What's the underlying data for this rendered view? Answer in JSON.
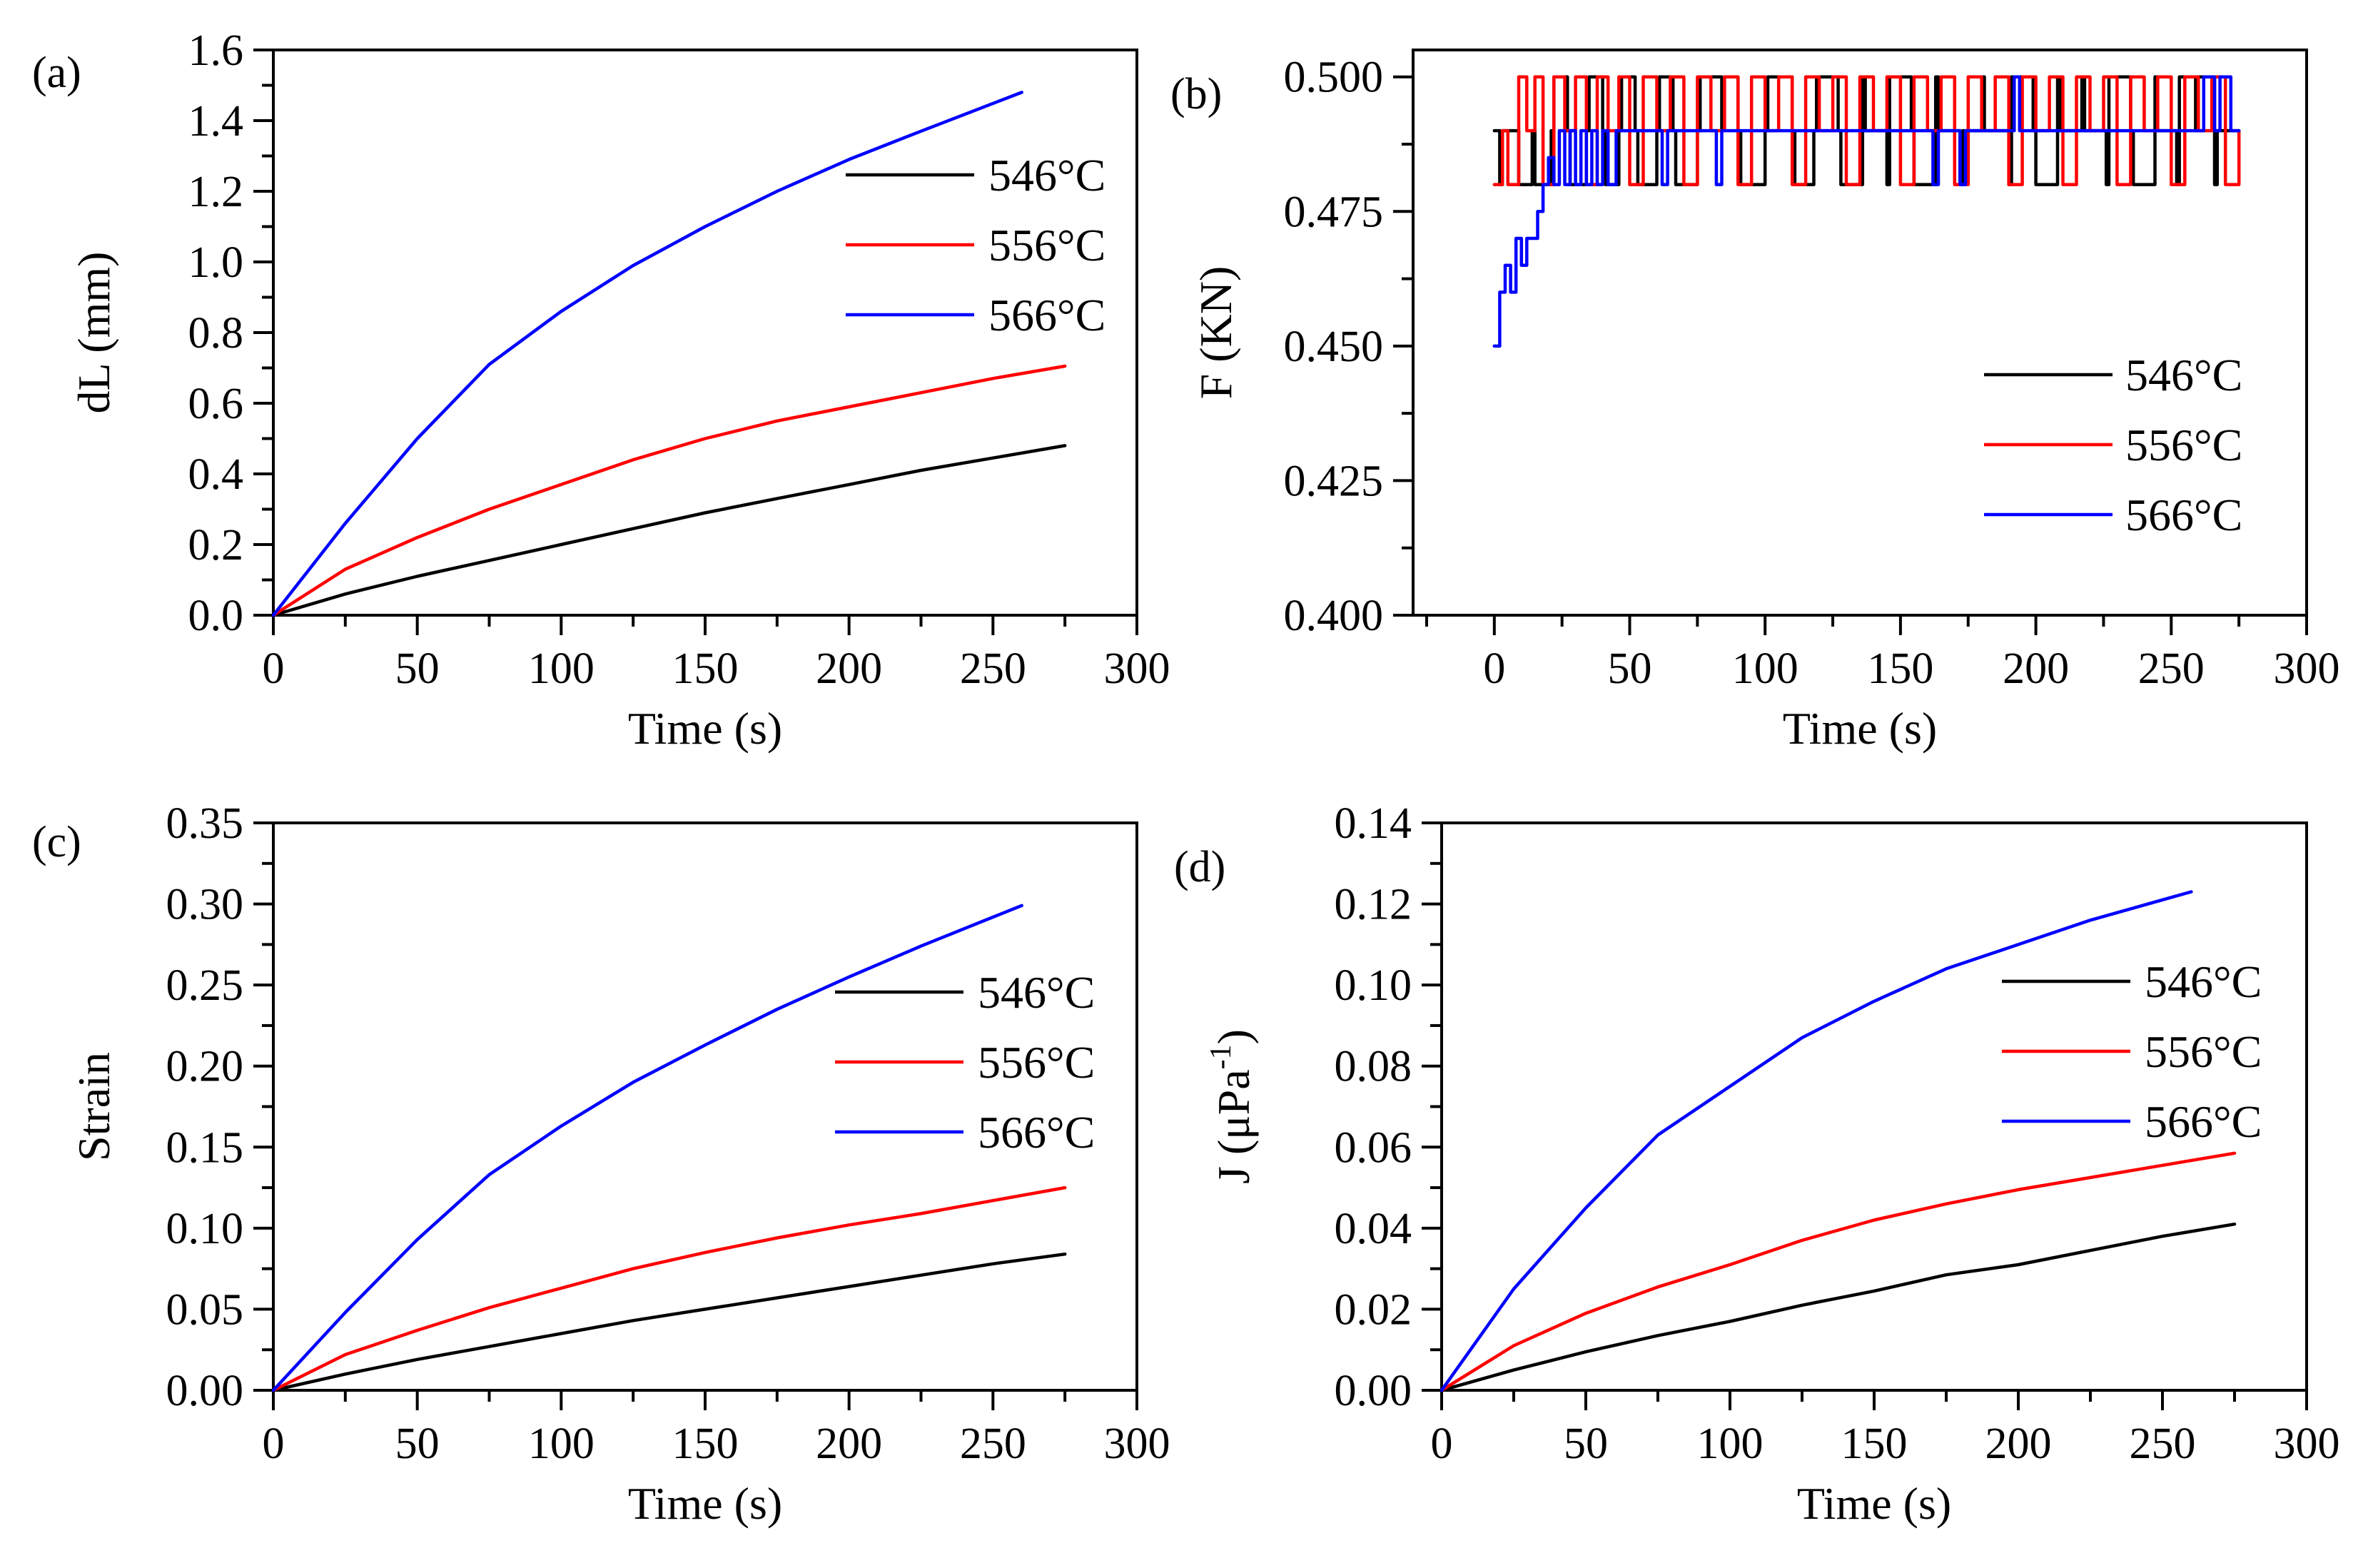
{
  "figure": {
    "background": "#ffffff",
    "series_colors": {
      "546°C": "#000000",
      "556°C": "#ff0000",
      "566°C": "#0000ff"
    }
  },
  "chart_data": [
    {
      "id": "a",
      "panel_label": "(a)",
      "type": "line",
      "xlabel": "Time (s)",
      "ylabel": "dL (mm)",
      "xlim": [
        0,
        300
      ],
      "ylim": [
        0,
        1.6
      ],
      "x_ticks": [
        "0",
        "50",
        "100",
        "150",
        "200",
        "250",
        "300"
      ],
      "y_ticks": [
        "0.0",
        "0.2",
        "0.4",
        "0.6",
        "0.8",
        "1.0",
        "1.2",
        "1.4",
        "1.6"
      ],
      "legend_position": "upper-right",
      "series": [
        {
          "name": "546°C",
          "color": "#000000",
          "x": [
            0,
            25,
            50,
            75,
            100,
            125,
            150,
            175,
            200,
            225,
            250,
            275
          ],
          "y": [
            0,
            0.06,
            0.11,
            0.155,
            0.2,
            0.245,
            0.29,
            0.33,
            0.37,
            0.41,
            0.445,
            0.48
          ]
        },
        {
          "name": "556°C",
          "color": "#ff0000",
          "x": [
            0,
            25,
            50,
            75,
            100,
            125,
            150,
            175,
            200,
            225,
            250,
            275
          ],
          "y": [
            0,
            0.13,
            0.22,
            0.3,
            0.37,
            0.44,
            0.5,
            0.55,
            0.59,
            0.63,
            0.67,
            0.705
          ]
        },
        {
          "name": "566°C",
          "color": "#0000ff",
          "x": [
            0,
            25,
            50,
            75,
            100,
            125,
            150,
            175,
            200,
            225,
            260
          ],
          "y": [
            0,
            0.26,
            0.5,
            0.71,
            0.86,
            0.99,
            1.1,
            1.2,
            1.29,
            1.37,
            1.48
          ]
        }
      ]
    },
    {
      "id": "b",
      "panel_label": "(b)",
      "type": "line",
      "xlabel": "Time (s)",
      "ylabel": "F (KN)",
      "xlim": [
        -30,
        300
      ],
      "ylim": [
        0.4,
        0.505
      ],
      "x_ticks": [
        "0",
        "50",
        "100",
        "150",
        "200",
        "250",
        "300"
      ],
      "y_ticks": [
        "0.400",
        "0.425",
        "0.450",
        "0.475",
        "0.500"
      ],
      "legend_position": "lower-right",
      "series": [
        {
          "name": "546°C",
          "color": "#000000",
          "style": "step",
          "x": [
            0,
            2,
            3,
            8,
            9,
            14,
            15,
            21,
            22,
            27,
            28,
            34,
            35,
            40,
            41,
            46,
            47,
            52,
            53,
            60,
            61,
            66,
            67,
            75,
            76,
            84,
            85,
            90,
            91,
            100,
            101,
            110,
            111,
            118,
            119,
            127,
            128,
            136,
            137,
            145,
            146,
            154,
            155,
            163,
            164,
            172,
            173,
            180,
            181,
            190,
            191,
            199,
            200,
            208,
            209,
            217,
            218,
            226,
            227,
            235,
            236,
            244,
            245,
            252,
            253,
            259,
            260,
            266,
            267,
            275
          ],
          "y": [
            0.49,
            0.48,
            0.49,
            0.49,
            0.48,
            0.49,
            0.48,
            0.49,
            0.5,
            0.49,
            0.48,
            0.49,
            0.5,
            0.49,
            0.48,
            0.49,
            0.5,
            0.49,
            0.48,
            0.49,
            0.5,
            0.49,
            0.48,
            0.49,
            0.5,
            0.49,
            0.5,
            0.49,
            0.48,
            0.49,
            0.5,
            0.49,
            0.48,
            0.49,
            0.5,
            0.49,
            0.48,
            0.5,
            0.49,
            0.48,
            0.5,
            0.49,
            0.48,
            0.5,
            0.49,
            0.48,
            0.49,
            0.5,
            0.49,
            0.48,
            0.5,
            0.49,
            0.48,
            0.5,
            0.49,
            0.5,
            0.49,
            0.48,
            0.5,
            0.49,
            0.48,
            0.5,
            0.49,
            0.48,
            0.5,
            0.49,
            0.5,
            0.48,
            0.49,
            0.49
          ]
        },
        {
          "name": "556°C",
          "color": "#ff0000",
          "style": "step",
          "x": [
            0,
            3,
            5,
            9,
            12,
            15,
            18,
            22,
            26,
            30,
            34,
            38,
            42,
            46,
            50,
            55,
            60,
            65,
            70,
            75,
            80,
            85,
            90,
            95,
            100,
            105,
            110,
            115,
            120,
            125,
            130,
            135,
            140,
            145,
            150,
            155,
            160,
            165,
            170,
            175,
            180,
            185,
            190,
            195,
            200,
            205,
            210,
            215,
            220,
            225,
            230,
            235,
            240,
            245,
            250,
            255,
            260,
            265,
            270,
            275
          ],
          "y": [
            0.48,
            0.49,
            0.48,
            0.5,
            0.49,
            0.5,
            0.48,
            0.5,
            0.49,
            0.5,
            0.48,
            0.5,
            0.49,
            0.5,
            0.48,
            0.5,
            0.49,
            0.5,
            0.48,
            0.5,
            0.49,
            0.5,
            0.48,
            0.5,
            0.49,
            0.5,
            0.48,
            0.5,
            0.49,
            0.5,
            0.48,
            0.5,
            0.49,
            0.5,
            0.48,
            0.5,
            0.49,
            0.5,
            0.48,
            0.5,
            0.49,
            0.5,
            0.48,
            0.5,
            0.49,
            0.5,
            0.48,
            0.5,
            0.49,
            0.5,
            0.48,
            0.5,
            0.49,
            0.5,
            0.48,
            0.5,
            0.49,
            0.5,
            0.48,
            0.49
          ]
        },
        {
          "name": "566°C",
          "color": "#0000ff",
          "style": "step",
          "x": [
            0,
            2,
            4,
            6,
            8,
            10,
            12,
            14,
            16,
            18,
            20,
            22,
            24,
            26,
            28,
            30,
            32,
            34,
            36,
            38,
            40,
            42,
            45,
            60,
            62,
            64,
            66,
            80,
            82,
            84,
            86,
            160,
            162,
            164,
            170,
            172,
            174,
            190,
            192,
            194,
            200,
            260,
            262,
            266,
            268,
            272,
            275
          ],
          "y": [
            0.45,
            0.46,
            0.465,
            0.46,
            0.47,
            0.465,
            0.47,
            0.47,
            0.475,
            0.48,
            0.485,
            0.48,
            0.49,
            0.48,
            0.49,
            0.48,
            0.49,
            0.48,
            0.49,
            0.48,
            0.49,
            0.48,
            0.49,
            0.49,
            0.48,
            0.49,
            0.49,
            0.49,
            0.48,
            0.49,
            0.49,
            0.49,
            0.48,
            0.49,
            0.49,
            0.48,
            0.49,
            0.49,
            0.5,
            0.49,
            0.49,
            0.49,
            0.5,
            0.49,
            0.5,
            0.49,
            0.49
          ]
        }
      ]
    },
    {
      "id": "c",
      "panel_label": "(c)",
      "type": "line",
      "xlabel": "Time (s)",
      "ylabel": "Strain",
      "xlim": [
        0,
        300
      ],
      "ylim": [
        0,
        0.35
      ],
      "x_ticks": [
        "0",
        "50",
        "100",
        "150",
        "200",
        "250",
        "300"
      ],
      "y_ticks": [
        "0.00",
        "0.05",
        "0.10",
        "0.15",
        "0.20",
        "0.25",
        "0.30",
        "0.35"
      ],
      "legend_position": "upper-right",
      "series": [
        {
          "name": "546°C",
          "color": "#000000",
          "x": [
            0,
            25,
            50,
            75,
            100,
            125,
            150,
            175,
            200,
            225,
            250,
            275
          ],
          "y": [
            0,
            0.01,
            0.019,
            0.027,
            0.035,
            0.043,
            0.05,
            0.057,
            0.064,
            0.071,
            0.078,
            0.084
          ]
        },
        {
          "name": "556°C",
          "color": "#ff0000",
          "x": [
            0,
            25,
            50,
            75,
            100,
            125,
            150,
            175,
            200,
            225,
            250,
            275
          ],
          "y": [
            0,
            0.022,
            0.037,
            0.051,
            0.063,
            0.075,
            0.085,
            0.094,
            0.102,
            0.109,
            0.117,
            0.125
          ]
        },
        {
          "name": "566°C",
          "color": "#0000ff",
          "x": [
            0,
            25,
            50,
            75,
            100,
            125,
            150,
            175,
            200,
            225,
            260
          ],
          "y": [
            0,
            0.048,
            0.093,
            0.133,
            0.163,
            0.19,
            0.213,
            0.235,
            0.255,
            0.274,
            0.299
          ]
        }
      ]
    },
    {
      "id": "d",
      "panel_label": "(d)",
      "type": "line",
      "xlabel": "Time (s)",
      "ylabel": "J (μPa-1)",
      "xlim": [
        0,
        300
      ],
      "ylim": [
        0,
        0.14
      ],
      "x_ticks": [
        "0",
        "50",
        "100",
        "150",
        "200",
        "250",
        "300"
      ],
      "y_ticks": [
        "0.00",
        "0.02",
        "0.04",
        "0.06",
        "0.08",
        "0.10",
        "0.12",
        "0.14"
      ],
      "legend_position": "upper-right",
      "series": [
        {
          "name": "546°C",
          "color": "#000000",
          "x": [
            0,
            25,
            50,
            75,
            100,
            125,
            150,
            175,
            200,
            225,
            250,
            275
          ],
          "y": [
            0,
            0.005,
            0.0095,
            0.0135,
            0.017,
            0.021,
            0.0245,
            0.0285,
            0.031,
            0.0345,
            0.038,
            0.041
          ]
        },
        {
          "name": "556°C",
          "color": "#ff0000",
          "x": [
            0,
            25,
            50,
            75,
            100,
            125,
            150,
            175,
            200,
            225,
            250,
            275
          ],
          "y": [
            0,
            0.011,
            0.019,
            0.0255,
            0.031,
            0.037,
            0.042,
            0.046,
            0.0495,
            0.0525,
            0.0555,
            0.0585
          ]
        },
        {
          "name": "566°C",
          "color": "#0000ff",
          "x": [
            0,
            25,
            50,
            75,
            100,
            125,
            150,
            175,
            200,
            225,
            260
          ],
          "y": [
            0,
            0.025,
            0.045,
            0.063,
            0.075,
            0.087,
            0.096,
            0.104,
            0.11,
            0.116,
            0.123
          ]
        }
      ]
    }
  ]
}
